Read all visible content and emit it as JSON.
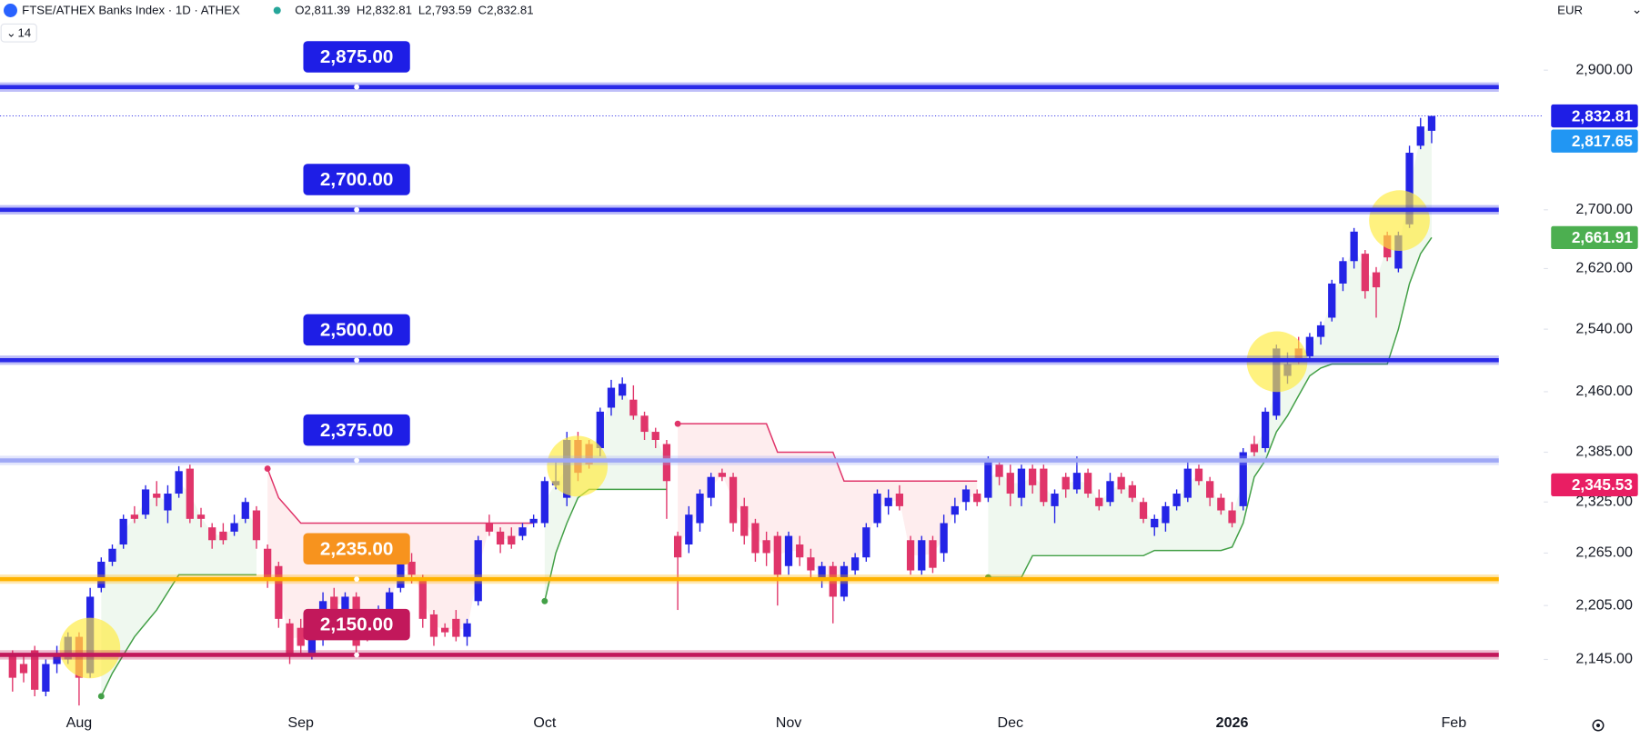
{
  "chart_data": {
    "type": "candlestick",
    "title": "FTSE/ATHEX Banks Index · 1D · ATHEX",
    "ohlc": [
      "O2,811.39",
      "H2,832.81",
      "L2,793.59",
      "C2,832.81"
    ],
    "indicator_length": 14,
    "currency": "EUR",
    "log_scale": true,
    "up_color": "#2424e6",
    "down_color": "#e0356a",
    "ylim": [
      2095,
      3006
    ],
    "yticks": [
      {
        "value": 2900,
        "label": "2,900.00"
      },
      {
        "value": 2700,
        "label": "2,700.00"
      },
      {
        "value": 2620,
        "label": "2,620.00"
      },
      {
        "value": 2540,
        "label": "2,540.00"
      },
      {
        "value": 2460,
        "label": "2,460.00"
      },
      {
        "value": 2385,
        "label": "2,385.00"
      },
      {
        "value": 2325,
        "label": "2,325.00"
      },
      {
        "value": 2265,
        "label": "2,265.00"
      },
      {
        "value": 2205,
        "label": "2,205.00"
      },
      {
        "value": 2145,
        "label": "2,145.00"
      }
    ],
    "categories": [
      null,
      null,
      null,
      null,
      null,
      null,
      "Aug",
      null,
      null,
      null,
      null,
      null,
      null,
      null,
      null,
      null,
      null,
      null,
      null,
      null,
      null,
      null,
      null,
      null,
      null,
      null,
      "Sep",
      null,
      null,
      null,
      null,
      null,
      null,
      null,
      null,
      null,
      null,
      null,
      null,
      null,
      null,
      null,
      null,
      null,
      null,
      null,
      null,
      null,
      "Oct",
      null,
      null,
      null,
      null,
      null,
      null,
      null,
      null,
      null,
      null,
      null,
      null,
      null,
      null,
      null,
      null,
      null,
      null,
      null,
      null,
      null,
      "Nov",
      null,
      null,
      null,
      null,
      null,
      null,
      null,
      null,
      null,
      null,
      null,
      null,
      null,
      null,
      null,
      null,
      null,
      null,
      null,
      "Dec",
      null,
      null,
      null,
      null,
      null,
      null,
      null,
      null,
      null,
      null,
      null,
      null,
      null,
      null,
      null,
      null,
      null,
      null,
      null,
      "2026",
      null,
      null,
      null,
      null,
      null,
      null,
      null,
      null,
      null,
      null,
      null,
      null,
      null,
      null,
      null,
      null,
      null,
      null,
      null,
      "Feb"
    ],
    "open": [
      2150,
      2140,
      2155,
      2110,
      2140,
      2145,
      2170,
      2130,
      2225,
      2255,
      2275,
      2310,
      2310,
      2335,
      2315,
      2335,
      2365,
      2310,
      2295,
      2290,
      2290,
      2305,
      2315,
      2270,
      2250,
      2185,
      2180,
      2150,
      2170,
      2215,
      2195,
      2215,
      2185,
      2175,
      2200,
      2225,
      2255,
      2235,
      2195,
      2180,
      2190,
      2170,
      2210,
      2300,
      2290,
      2285,
      2285,
      2300,
      2300,
      2345,
      2330,
      2400,
      2395,
      2390,
      2440,
      2455,
      2450,
      2430,
      2410,
      2395,
      2285,
      2275,
      2300,
      2330,
      2360,
      2355,
      2320,
      2300,
      2280,
      2285,
      2250,
      2275,
      2260,
      2235,
      2250,
      2215,
      2245,
      2260,
      2300,
      2320,
      2335,
      2280,
      2245,
      2280,
      2265,
      2310,
      2325,
      2335,
      2330,
      2370,
      2360,
      2330,
      2365,
      2365,
      2320,
      2355,
      2340,
      2360,
      2330,
      2325,
      2355,
      2345,
      2325,
      2295,
      2300,
      2320,
      2330,
      2365,
      2350,
      2330,
      2315,
      2320,
      2395,
      2390,
      2430,
      2480,
      2515,
      2505,
      2530,
      2555,
      2600,
      2630,
      2640,
      2615,
      2665,
      2620,
      2680,
      2790,
      2811.39,
      null,
      null
    ],
    "high": [
      2155,
      2150,
      2160,
      2145,
      2160,
      2175,
      2175,
      2225,
      2260,
      2275,
      2310,
      2320,
      2345,
      2350,
      2345,
      2368,
      2370,
      2318,
      2300,
      2300,
      2310,
      2330,
      2320,
      2275,
      2255,
      2190,
      2190,
      2180,
      2220,
      2225,
      2220,
      2220,
      2200,
      2205,
      2225,
      2265,
      2265,
      2240,
      2200,
      2185,
      2200,
      2190,
      2285,
      2310,
      2295,
      2295,
      2300,
      2310,
      2355,
      2375,
      2410,
      2410,
      2400,
      2440,
      2475,
      2478,
      2468,
      2435,
      2415,
      2400,
      2290,
      2320,
      2340,
      2360,
      2365,
      2360,
      2330,
      2305,
      2290,
      2290,
      2290,
      2285,
      2270,
      2255,
      2255,
      2255,
      2265,
      2300,
      2340,
      2340,
      2345,
      2285,
      2285,
      2285,
      2310,
      2330,
      2345,
      2340,
      2380,
      2375,
      2370,
      2370,
      2370,
      2370,
      2340,
      2360,
      2380,
      2365,
      2340,
      2360,
      2360,
      2350,
      2330,
      2310,
      2325,
      2340,
      2375,
      2370,
      2355,
      2335,
      2325,
      2390,
      2405,
      2440,
      2520,
      2510,
      2530,
      2535,
      2550,
      2605,
      2635,
      2675,
      2645,
      2622,
      2670,
      2670,
      2790,
      2830,
      2832.81,
      null,
      null
    ],
    "low": [
      2110,
      2120,
      2105,
      2105,
      2130,
      2140,
      2095,
      2125,
      2220,
      2250,
      2270,
      2300,
      2305,
      2320,
      2300,
      2330,
      2300,
      2295,
      2270,
      2275,
      2285,
      2300,
      2270,
      2225,
      2180,
      2140,
      2150,
      2145,
      2160,
      2190,
      2180,
      2150,
      2165,
      2170,
      2195,
      2220,
      2230,
      2180,
      2160,
      2170,
      2165,
      2160,
      2205,
      2285,
      2265,
      2270,
      2280,
      2295,
      2295,
      2340,
      2320,
      2350,
      2365,
      2380,
      2430,
      2450,
      2425,
      2400,
      2390,
      2305,
      2200,
      2265,
      2290,
      2320,
      2350,
      2290,
      2275,
      2255,
      2250,
      2205,
      2240,
      2250,
      2235,
      2225,
      2185,
      2210,
      2240,
      2255,
      2295,
      2310,
      2315,
      2240,
      2240,
      2242,
      2255,
      2300,
      2315,
      2320,
      2325,
      2345,
      2320,
      2320,
      2335,
      2320,
      2300,
      2330,
      2335,
      2330,
      2315,
      2320,
      2335,
      2325,
      2300,
      2285,
      2290,
      2315,
      2325,
      2345,
      2320,
      2310,
      2295,
      2315,
      2380,
      2385,
      2425,
      2470,
      2495,
      2500,
      2520,
      2550,
      2590,
      2620,
      2580,
      2555,
      2630,
      2615,
      2675,
      2785,
      2793.59,
      null,
      null
    ],
    "close": [
      2125,
      2130,
      2112,
      2140,
      2150,
      2170,
      2125,
      2215,
      2255,
      2270,
      2305,
      2305,
      2340,
      2330,
      2335,
      2362,
      2305,
      2305,
      2280,
      2280,
      2300,
      2325,
      2280,
      2235,
      2190,
      2150,
      2160,
      2175,
      2210,
      2200,
      2215,
      2160,
      2175,
      2200,
      2220,
      2260,
      2240,
      2190,
      2170,
      2175,
      2170,
      2185,
      2280,
      2290,
      2275,
      2275,
      2295,
      2305,
      2350,
      2350,
      2400,
      2360,
      2370,
      2435,
      2465,
      2470,
      2430,
      2410,
      2400,
      2350,
      2260,
      2310,
      2335,
      2355,
      2355,
      2300,
      2285,
      2265,
      2265,
      2240,
      2285,
      2260,
      2245,
      2250,
      2215,
      2250,
      2260,
      2295,
      2335,
      2330,
      2320,
      2245,
      2280,
      2248,
      2300,
      2320,
      2340,
      2325,
      2375,
      2355,
      2335,
      2365,
      2345,
      2325,
      2335,
      2340,
      2360,
      2335,
      2320,
      2350,
      2340,
      2330,
      2305,
      2305,
      2320,
      2335,
      2365,
      2350,
      2330,
      2315,
      2300,
      2385,
      2385,
      2435,
      2515,
      2495,
      2500,
      2530,
      2545,
      2600,
      2630,
      2670,
      2590,
      2595,
      2635,
      2665,
      2780,
      2817.65,
      2832.81,
      null,
      null
    ],
    "supertrend_up": {
      "color": "#43a047",
      "fill": "rgba(76,175,80,0.09)",
      "values": [
        null,
        null,
        null,
        null,
        null,
        null,
        null,
        null,
        2105,
        2130,
        2150,
        2170,
        2185,
        2200,
        2220,
        2240,
        2240,
        2240,
        2240,
        2240,
        2240,
        2240,
        2240,
        null,
        null,
        null,
        null,
        null,
        null,
        null,
        null,
        null,
        null,
        null,
        null,
        null,
        null,
        null,
        null,
        null,
        null,
        null,
        null,
        null,
        null,
        null,
        null,
        null,
        2210,
        2265,
        2300,
        2330,
        2340,
        2340,
        2340,
        2340,
        2340,
        2340,
        2340,
        2340,
        null,
        null,
        null,
        null,
        null,
        null,
        null,
        null,
        null,
        null,
        null,
        null,
        null,
        null,
        null,
        null,
        null,
        null,
        null,
        null,
        null,
        null,
        null,
        null,
        null,
        null,
        null,
        null,
        2237,
        2237,
        2237,
        2237,
        2262,
        2262,
        2262,
        2262,
        2262,
        2262,
        2262,
        2262,
        2262,
        2262,
        2262,
        2268,
        2268,
        2268,
        2268,
        2268,
        2268,
        2268,
        2272,
        2300,
        2355,
        2375,
        2410,
        2430,
        2455,
        2480,
        2490,
        2495,
        2495,
        2495,
        2495,
        2495,
        2495,
        2540,
        2600,
        2640,
        2661.91,
        null,
        null
      ]
    },
    "supertrend_down": {
      "color": "#e0356a",
      "fill": "rgba(242,54,69,0.09)",
      "values": [
        null,
        null,
        null,
        null,
        null,
        null,
        null,
        null,
        null,
        null,
        null,
        null,
        null,
        null,
        null,
        null,
        null,
        null,
        null,
        null,
        null,
        null,
        null,
        2365,
        2330,
        2315,
        2300,
        2300,
        2300,
        2300,
        2300,
        2300,
        2300,
        2300,
        2300,
        2300,
        2300,
        2300,
        2300,
        2300,
        2300,
        2300,
        2300,
        2300,
        2300,
        2300,
        2300,
        2300,
        null,
        null,
        null,
        null,
        null,
        null,
        null,
        null,
        null,
        null,
        null,
        null,
        2420,
        2420,
        2420,
        2420,
        2420,
        2420,
        2420,
        2420,
        2420,
        2385,
        2385,
        2385,
        2385,
        2385,
        2385,
        2350,
        2350,
        2350,
        2350,
        2350,
        2350,
        2350,
        2350,
        2350,
        2350,
        2350,
        2350,
        2350,
        null,
        null,
        null,
        null,
        null,
        null,
        null,
        null,
        null,
        null,
        null,
        null,
        null,
        null,
        null,
        null,
        null,
        null,
        null,
        null,
        null,
        null,
        null,
        null,
        null,
        null,
        null,
        null,
        null,
        null,
        null,
        null,
        null,
        null,
        null,
        null,
        null,
        null,
        null,
        null,
        null
      ]
    },
    "levels": [
      {
        "value": 2875,
        "label": "2,875.00",
        "color": "#2a2ae8",
        "label_color": "#1e1ee6"
      },
      {
        "value": 2700,
        "label": "2,700.00",
        "color": "#2a2ae8",
        "label_color": "#1e1ee6"
      },
      {
        "value": 2500,
        "label": "2,500.00",
        "color": "#2a2ae8",
        "label_color": "#1e1ee6"
      },
      {
        "value": 2375,
        "label": "2,375.00",
        "color": "#9fa8f5",
        "label_color": "#1e1ee6"
      },
      {
        "value": 2235,
        "label": "2,235.00",
        "color": "#ffb300",
        "label_color": "#f7931e"
      },
      {
        "value": 2150,
        "label": "2,150.00",
        "color": "#c2185b",
        "label_color": "#c2185b"
      }
    ],
    "price_labels": [
      {
        "value": 2832.81,
        "label": "2,832.81",
        "color": "#1e1ee6"
      },
      {
        "value": 2817.65,
        "label": "2,817.65",
        "color": "#2196f3"
      },
      {
        "value": 2661.91,
        "label": "2,661.91",
        "color": "#4caf50"
      },
      {
        "value": 2345.53,
        "label": "2,345.53",
        "color": "#e91e63"
      }
    ]
  }
}
